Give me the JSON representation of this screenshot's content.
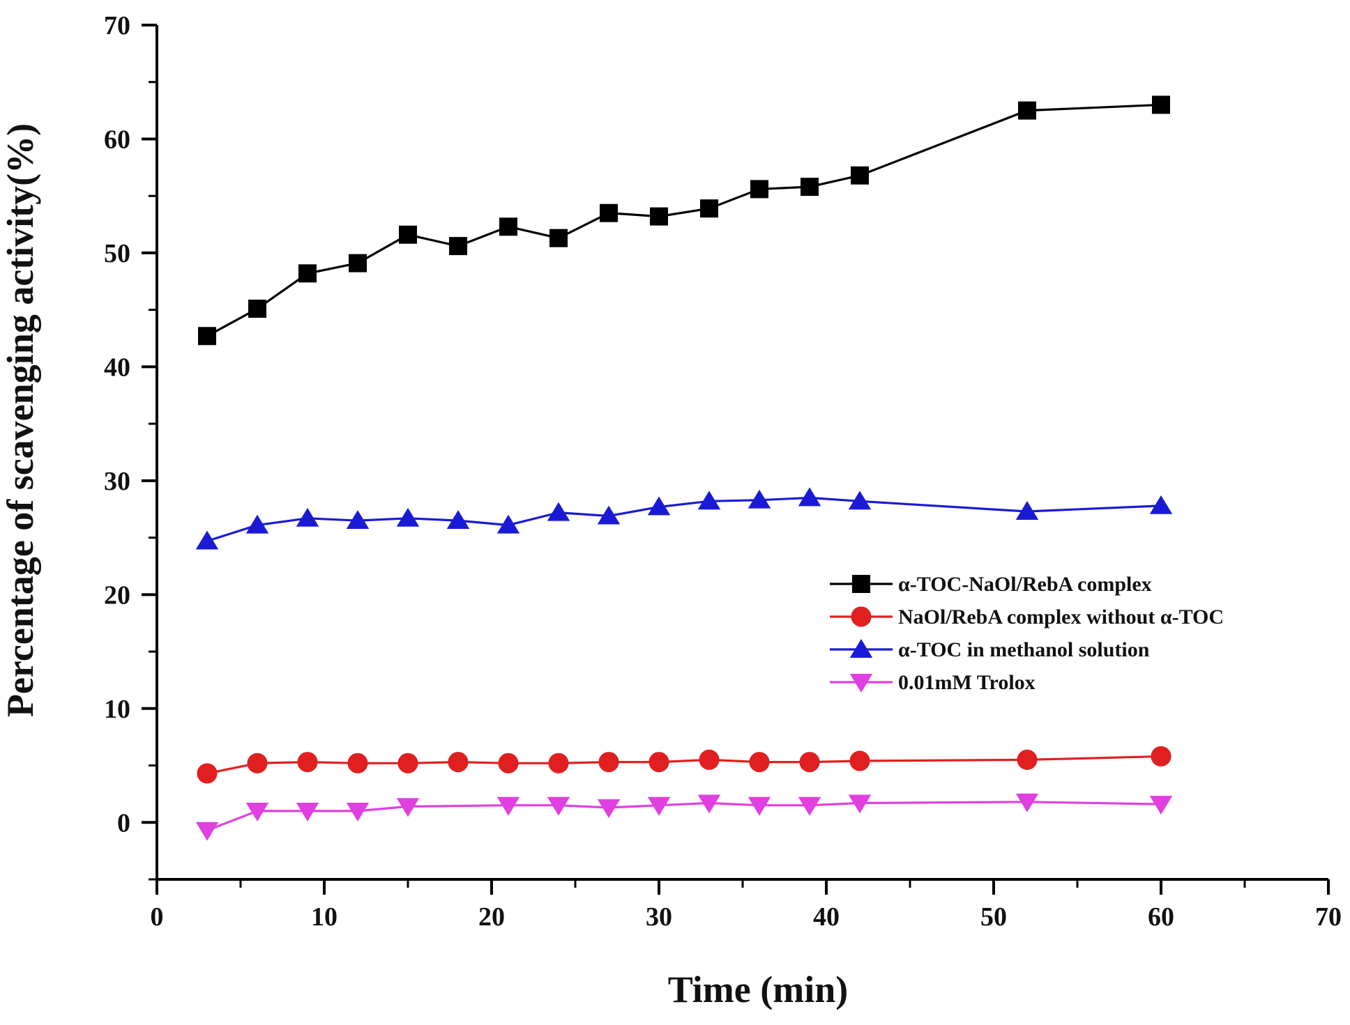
{
  "chart_data": {
    "type": "line",
    "title": "",
    "xlabel": "Time (min)",
    "ylabel": "Percentage of scavenging activity(%)",
    "xlim": [
      0,
      70
    ],
    "ylim": [
      -5,
      70
    ],
    "xticks": [
      0,
      10,
      20,
      30,
      40,
      50,
      60,
      70
    ],
    "yticks": [
      0,
      10,
      20,
      30,
      40,
      50,
      60,
      70
    ],
    "xticks_minor": [
      5,
      15,
      25,
      35,
      45,
      55,
      65
    ],
    "yticks_minor": [
      -5,
      5,
      15,
      25,
      35,
      45,
      55,
      65
    ],
    "grid": false,
    "legend_position": "center-right",
    "series": [
      {
        "name": "α-TOC-NaOl/RebA complex",
        "color": "#000000",
        "marker": "square",
        "x": [
          3,
          6,
          9,
          12,
          15,
          18,
          21,
          24,
          27,
          30,
          33,
          36,
          39,
          42,
          52,
          60
        ],
        "values": [
          42.7,
          45.1,
          48.2,
          49.1,
          51.6,
          50.6,
          52.3,
          51.3,
          53.5,
          53.2,
          53.9,
          55.6,
          55.8,
          56.8,
          62.5,
          63.0
        ]
      },
      {
        "name": "NaOl/RebA complex without α-TOC",
        "color": "#e02020",
        "marker": "circle",
        "x": [
          3,
          6,
          9,
          12,
          15,
          18,
          21,
          24,
          27,
          30,
          33,
          36,
          39,
          42,
          52,
          60
        ],
        "values": [
          4.3,
          5.2,
          5.3,
          5.2,
          5.2,
          5.3,
          5.2,
          5.2,
          5.3,
          5.3,
          5.5,
          5.3,
          5.3,
          5.4,
          5.5,
          5.8
        ]
      },
      {
        "name": "α-TOC in methanol solution",
        "color": "#1a1ad6",
        "marker": "triangle-up",
        "x": [
          3,
          6,
          9,
          12,
          15,
          18,
          21,
          24,
          27,
          30,
          33,
          36,
          39,
          42,
          52,
          60
        ],
        "values": [
          24.7,
          26.1,
          26.7,
          26.5,
          26.7,
          26.5,
          26.1,
          27.2,
          26.9,
          27.7,
          28.2,
          28.3,
          28.5,
          28.2,
          27.3,
          27.8
        ]
      },
      {
        "name": "0.01mM Trolox",
        "color": "#e040e0",
        "marker": "triangle-down",
        "x": [
          3,
          6,
          9,
          12,
          15,
          21,
          24,
          27,
          30,
          33,
          36,
          39,
          42,
          52,
          60
        ],
        "values": [
          -0.7,
          1.0,
          1.0,
          1.0,
          1.4,
          1.5,
          1.5,
          1.3,
          1.5,
          1.7,
          1.5,
          1.5,
          1.7,
          1.8,
          1.6
        ]
      }
    ]
  }
}
